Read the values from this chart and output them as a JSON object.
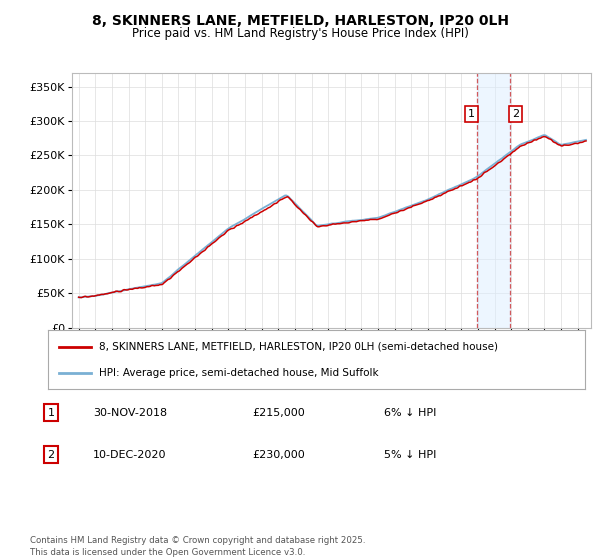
{
  "title": "8, SKINNERS LANE, METFIELD, HARLESTON, IP20 0LH",
  "subtitle": "Price paid vs. HM Land Registry's House Price Index (HPI)",
  "ylabel_ticks": [
    "£0",
    "£50K",
    "£100K",
    "£150K",
    "£200K",
    "£250K",
    "£300K",
    "£350K"
  ],
  "ytick_values": [
    0,
    50000,
    100000,
    150000,
    200000,
    250000,
    300000,
    350000
  ],
  "ylim": [
    0,
    370000
  ],
  "xlim_start": 1994.6,
  "xlim_end": 2025.8,
  "sale1_date": 2018.917,
  "sale1_label": "1",
  "sale1_price": 215000,
  "sale2_date": 2020.958,
  "sale2_label": "2",
  "sale2_price": 230000,
  "line_color_property": "#cc0000",
  "line_color_hpi": "#7ab0d4",
  "vline_color": "#cc3333",
  "shade_color": "#ddeeff",
  "shade_alpha": 0.5,
  "legend_entry1": "8, SKINNERS LANE, METFIELD, HARLESTON, IP20 0LH (semi-detached house)",
  "legend_entry2": "HPI: Average price, semi-detached house, Mid Suffolk",
  "annotation1_date": "30-NOV-2018",
  "annotation1_price": "£215,000",
  "annotation1_note": "6% ↓ HPI",
  "annotation2_date": "10-DEC-2020",
  "annotation2_price": "£230,000",
  "annotation2_note": "5% ↓ HPI",
  "footer": "Contains HM Land Registry data © Crown copyright and database right 2025.\nThis data is licensed under the Open Government Licence v3.0.",
  "background_color": "#ffffff",
  "grid_color": "#dddddd"
}
